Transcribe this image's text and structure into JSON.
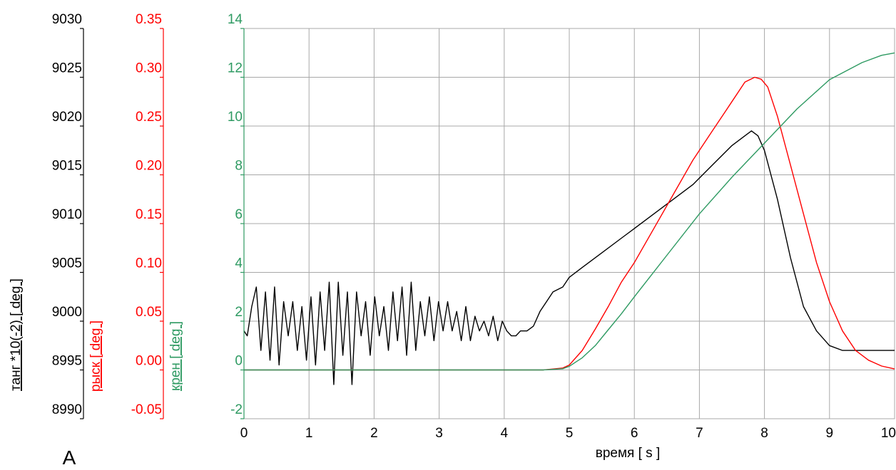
{
  "chart_data": {
    "type": "line",
    "xlabel": "время   [ s ]",
    "xlim": [
      0,
      10
    ],
    "xticks": [
      "0",
      "1",
      "2",
      "3",
      "4",
      "5",
      "6",
      "7",
      "8",
      "9",
      "10"
    ],
    "grid": true,
    "corner_label": "A",
    "axes": [
      {
        "id": "tang",
        "label": "танг  *10(-2) [ deg ]",
        "color": "#000000",
        "ylim": [
          8990,
          9030
        ],
        "ticks": [
          "9030",
          "9025",
          "9020",
          "9015",
          "9010",
          "9005",
          "9000",
          "8995",
          "8990"
        ]
      },
      {
        "id": "rysk",
        "label": "рыск   [ deg ]",
        "color": "#ff0000",
        "ylim": [
          -0.05,
          0.35
        ],
        "ticks": [
          "0.35",
          "0.30",
          "0.25",
          "0.20",
          "0.15",
          "0.10",
          "0.05",
          "0.00",
          "-0.05"
        ]
      },
      {
        "id": "kren",
        "label": "крен   [ deg ]",
        "color": "#2e9a62",
        "ylim": [
          -2,
          14
        ],
        "ticks": [
          "14",
          "12",
          "10",
          "8",
          "6",
          "4",
          "2",
          "0",
          "-2"
        ]
      }
    ],
    "series": [
      {
        "axis": "tang",
        "color": "#000000",
        "x": [
          0,
          0.05,
          0.12,
          0.19,
          0.26,
          0.33,
          0.4,
          0.47,
          0.54,
          0.61,
          0.68,
          0.75,
          0.82,
          0.89,
          0.96,
          1.03,
          1.1,
          1.17,
          1.24,
          1.31,
          1.38,
          1.45,
          1.52,
          1.59,
          1.66,
          1.73,
          1.8,
          1.87,
          1.94,
          2.01,
          2.08,
          2.15,
          2.22,
          2.29,
          2.36,
          2.43,
          2.5,
          2.57,
          2.64,
          2.71,
          2.78,
          2.85,
          2.92,
          2.99,
          3.06,
          3.13,
          3.2,
          3.27,
          3.34,
          3.41,
          3.48,
          3.55,
          3.62,
          3.69,
          3.76,
          3.83,
          3.9,
          3.97,
          4.04,
          4.11,
          4.18,
          4.25,
          4.35,
          4.45,
          4.55,
          4.65,
          4.75,
          4.9,
          5.0,
          5.2,
          5.5,
          5.8,
          6.0,
          6.3,
          6.6,
          6.9,
          7.2,
          7.5,
          7.7,
          7.8,
          7.9,
          8.0,
          8.2,
          8.4,
          8.6,
          8.8,
          9.0,
          9.2,
          9.4,
          9.6,
          9.8,
          10.0
        ],
        "values": [
          8999.0,
          8998.5,
          9001.5,
          9003.5,
          8997.0,
          9003.0,
          8996.0,
          9003.5,
          8995.5,
          9002.0,
          8998.5,
          9002.0,
          8997.0,
          9001.5,
          8996.0,
          9002.5,
          8995.5,
          9003.0,
          8997.0,
          9004.0,
          8993.5,
          9004.0,
          8996.5,
          9003.0,
          8993.5,
          9003.0,
          8998.5,
          9002.0,
          8996.5,
          9002.5,
          8998.5,
          9001.5,
          8997.0,
          9003.0,
          8998.0,
          9003.5,
          8996.5,
          9004.0,
          8997.0,
          9002.0,
          8998.5,
          9002.5,
          8998.0,
          9002.0,
          8999.0,
          9002.0,
          8999.0,
          9001.0,
          8998.0,
          9001.5,
          8998.0,
          9000.5,
          8999.0,
          9000.0,
          8998.5,
          9000.5,
          8998.0,
          9000.0,
          8999.0,
          8998.5,
          8998.5,
          8999.0,
          8999.0,
          8999.5,
          9001.0,
          9002.0,
          9003.0,
          9003.5,
          9004.5,
          9005.5,
          9007.0,
          9008.5,
          9009.5,
          9011.0,
          9012.5,
          9014.0,
          9016.0,
          9018.0,
          9019.0,
          9019.5,
          9019.0,
          9017.5,
          9012.5,
          9006.5,
          9001.5,
          8999.0,
          8997.5,
          8997.0,
          8997.0,
          8997.0,
          8997.0,
          8997.0
        ]
      },
      {
        "axis": "rysk",
        "color": "#ff0000",
        "x": [
          0,
          1.0,
          2.0,
          3.0,
          4.0,
          4.6,
          4.9,
          5.0,
          5.2,
          5.4,
          5.6,
          5.8,
          6.0,
          6.3,
          6.6,
          6.9,
          7.2,
          7.5,
          7.7,
          7.85,
          7.95,
          8.05,
          8.2,
          8.4,
          8.6,
          8.8,
          9.0,
          9.2,
          9.4,
          9.6,
          9.8,
          10.0
        ],
        "values": [
          0.0,
          0.0,
          0.0,
          0.0,
          0.0,
          0.0,
          0.002,
          0.005,
          0.02,
          0.042,
          0.065,
          0.09,
          0.11,
          0.145,
          0.18,
          0.215,
          0.245,
          0.275,
          0.295,
          0.3,
          0.298,
          0.29,
          0.26,
          0.21,
          0.16,
          0.11,
          0.07,
          0.04,
          0.02,
          0.01,
          0.004,
          0.001
        ]
      },
      {
        "axis": "kren",
        "color": "#2e9a62",
        "x": [
          0,
          1.0,
          2.0,
          3.0,
          4.0,
          4.6,
          4.9,
          5.0,
          5.2,
          5.4,
          5.6,
          5.8,
          6.0,
          6.5,
          7.0,
          7.5,
          8.0,
          8.5,
          9.0,
          9.5,
          9.8,
          10.0
        ],
        "values": [
          0.0,
          0.0,
          0.0,
          0.0,
          0.0,
          0.0,
          0.05,
          0.15,
          0.5,
          1.0,
          1.65,
          2.3,
          3.0,
          4.7,
          6.4,
          7.9,
          9.3,
          10.7,
          11.9,
          12.6,
          12.9,
          13.0
        ]
      }
    ]
  }
}
